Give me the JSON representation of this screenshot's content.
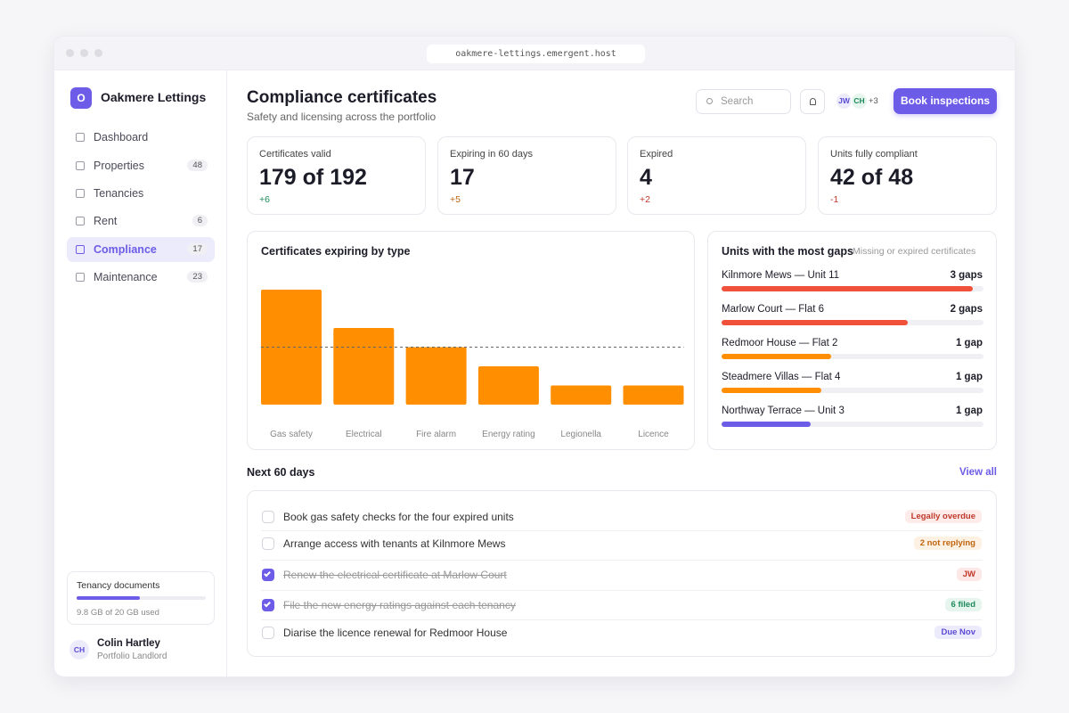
{
  "browser": {
    "url": "oakmere-lettings.emergent.host"
  },
  "sidebar": {
    "brand_initial": "O",
    "brand": "Oakmere Lettings",
    "nav": [
      {
        "label": "Dashboard"
      },
      {
        "label": "Properties",
        "count": "48"
      },
      {
        "label": "Tenancies"
      },
      {
        "label": "Rent",
        "count": "6"
      },
      {
        "label": "Compliance",
        "count": "17",
        "active": true
      },
      {
        "label": "Maintenance",
        "count": "23"
      }
    ],
    "storage": {
      "title": "Tenancy documents",
      "used": 9.8,
      "total": 20,
      "label": "9.8 GB of 20 GB used"
    },
    "user": {
      "initials": "CH",
      "name": "Colin Hartley",
      "role": "Portfolio Landlord"
    }
  },
  "header": {
    "title": "Compliance certificates",
    "subtitle": "Safety and licensing across the portfolio",
    "search_placeholder": "Search",
    "avatars": [
      "JW",
      "CH"
    ],
    "more": "+3",
    "button": "Book inspections"
  },
  "kpis": [
    {
      "label": "Certificates valid",
      "value": "179 of 192",
      "delta": "+6",
      "tone": "green"
    },
    {
      "label": "Expiring in 60 days",
      "value": "17",
      "delta": "+5",
      "tone": "orange"
    },
    {
      "label": "Expired",
      "value": "4",
      "delta": "+2",
      "tone": "red"
    },
    {
      "label": "Units fully compliant",
      "value": "42 of 48",
      "delta": "-1",
      "tone": "red"
    }
  ],
  "chart_data": {
    "type": "bar",
    "title": "Certificates expiring by type",
    "categories": [
      "Gas safety",
      "Electrical",
      "Fire alarm",
      "Energy rating",
      "Legionella",
      "Licence"
    ],
    "values": [
      6,
      4,
      3,
      2,
      1,
      1
    ],
    "color": "#ff8f00",
    "reference_line": 3
  },
  "gaps": {
    "title": "Units with the most gaps",
    "subtitle": "Missing or expired certificates",
    "rows": [
      {
        "unit": "Kilnmore Mews — Unit 11",
        "gaps": "3 gaps",
        "fill": 96,
        "color": "#f0513a"
      },
      {
        "unit": "Marlow Court — Flat 6",
        "gaps": "2 gaps",
        "fill": 71,
        "color": "#f0513a"
      },
      {
        "unit": "Redmoor House — Flat 2",
        "gaps": "1 gap",
        "fill": 42,
        "color": "#ff8f00"
      },
      {
        "unit": "Steadmere Villas — Flat 4",
        "gaps": "1 gap",
        "fill": 38,
        "color": "#ff8f00"
      },
      {
        "unit": "Northway Terrace — Unit 3",
        "gaps": "1 gap",
        "fill": 34,
        "color": "#6c5ce7"
      }
    ]
  },
  "tasks": {
    "title": "Next 60 days",
    "link": "View all",
    "items": [
      {
        "text": "Book gas safety checks for the four expired units",
        "done": false,
        "tag": "Legally overdue",
        "tone": "red"
      },
      {
        "text": "Arrange access with tenants at Kilnmore Mews",
        "done": false,
        "tag": "2 not replying",
        "tone": "orange"
      },
      {
        "text": "Renew the electrical certificate at Marlow Court",
        "done": true,
        "tag": "JW",
        "tone": "pink"
      },
      {
        "text": "File the new energy ratings against each tenancy",
        "done": true,
        "tag": "6 filed",
        "tone": "green"
      },
      {
        "text": "Diarise the licence renewal for Redmoor House",
        "done": false,
        "tag": "Due Nov",
        "tone": "purple"
      }
    ]
  }
}
